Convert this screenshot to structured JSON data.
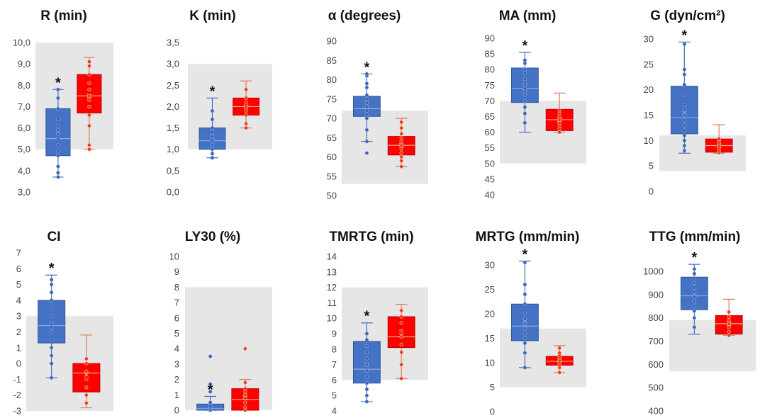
{
  "chart_data": [
    {
      "type": "box",
      "title": "R (min)",
      "ylim": [
        3,
        10
      ],
      "ticks": [
        "3,0",
        "4,0",
        "5,0",
        "6,0",
        "7,0",
        "8,0",
        "9,0",
        "10,0"
      ],
      "tick_values": [
        3,
        4,
        5,
        6,
        7,
        8,
        9,
        10
      ],
      "reference_range": [
        5,
        10
      ],
      "series": [
        {
          "color": "#4472C4",
          "min": 3.7,
          "q1": 4.7,
          "median": 5.5,
          "q3": 6.9,
          "max": 7.8,
          "mean": 5.8,
          "points": [
            3.7,
            3.9,
            4.2,
            4.7,
            4.9,
            5.2,
            5.5,
            5.7,
            5.9,
            6.1,
            6.4,
            6.9,
            7.4,
            7.8
          ],
          "significant": true,
          "marker": "*"
        },
        {
          "color": "#FF0000",
          "min": 5.0,
          "q1": 6.7,
          "median": 7.5,
          "q3": 8.5,
          "max": 9.3,
          "mean": 7.5,
          "points": [
            5.0,
            5.2,
            6.1,
            6.6,
            7.0,
            7.3,
            7.5,
            7.8,
            8.1,
            8.5,
            8.9,
            9.1
          ],
          "significant": false,
          "marker": ""
        }
      ]
    },
    {
      "type": "box",
      "title": "K (min)",
      "ylim": [
        0,
        3.5
      ],
      "ticks": [
        "0,0",
        "0,5",
        "1,0",
        "1,5",
        "2,0",
        "2,5",
        "3,0",
        "3,5"
      ],
      "tick_values": [
        0,
        0.5,
        1,
        1.5,
        2,
        2.5,
        3,
        3.5
      ],
      "reference_range": [
        1,
        3
      ],
      "series": [
        {
          "color": "#4472C4",
          "min": 0.8,
          "q1": 1.0,
          "median": 1.2,
          "q3": 1.5,
          "max": 2.2,
          "mean": 1.3,
          "points": [
            0.8,
            0.9,
            1.0,
            1.1,
            1.2,
            1.3,
            1.4,
            1.5,
            1.7,
            1.9
          ],
          "significant": true,
          "marker": "*"
        },
        {
          "color": "#FF0000",
          "min": 1.5,
          "q1": 1.8,
          "median": 2.0,
          "q3": 2.2,
          "max": 2.6,
          "mean": 2.0,
          "points": [
            1.5,
            1.6,
            1.8,
            1.9,
            2.0,
            2.1,
            2.2,
            2.4
          ],
          "significant": false,
          "marker": ""
        }
      ]
    },
    {
      "type": "box",
      "title": "α (degrees)",
      "ylim": [
        50,
        90
      ],
      "ticks": [
        "50",
        "55",
        "60",
        "65",
        "70",
        "75",
        "80",
        "85",
        "90"
      ],
      "tick_values": [
        50,
        55,
        60,
        65,
        70,
        75,
        80,
        85,
        90
      ],
      "reference_range": [
        53,
        72
      ],
      "series": [
        {
          "color": "#4472C4",
          "min": 64,
          "q1": 70.5,
          "median": 72.5,
          "q3": 75.7,
          "max": 81.5,
          "mean": 72.5,
          "points": [
            61,
            64,
            67,
            70,
            71,
            72,
            73,
            74,
            75,
            76,
            78,
            79,
            81,
            81.5
          ],
          "significant": true,
          "marker": "*"
        },
        {
          "color": "#FF0000",
          "min": 57.5,
          "q1": 60.5,
          "median": 63,
          "q3": 65.3,
          "max": 70,
          "mean": 63,
          "points": [
            57.5,
            59,
            60,
            61,
            62,
            63,
            64,
            65,
            66,
            67.5,
            69
          ],
          "significant": false,
          "marker": ""
        }
      ]
    },
    {
      "type": "box",
      "title": "MA (mm)",
      "ylim": [
        40,
        90
      ],
      "ticks": [
        "40",
        "45",
        "50",
        "55",
        "60",
        "65",
        "70",
        "75",
        "80",
        "85",
        "90"
      ],
      "tick_values": [
        40,
        45,
        50,
        55,
        60,
        65,
        70,
        75,
        80,
        85,
        90
      ],
      "reference_range": [
        50,
        70
      ],
      "series": [
        {
          "color": "#4472C4",
          "min": 60,
          "q1": 69.5,
          "median": 74,
          "q3": 80.5,
          "max": 85.5,
          "mean": 74.5,
          "points": [
            63,
            66,
            68,
            70,
            72,
            73,
            74,
            75,
            76,
            77,
            79,
            80,
            82,
            83
          ],
          "significant": true,
          "marker": "*"
        },
        {
          "color": "#FF0000",
          "min": 60,
          "q1": 60.5,
          "median": 64,
          "q3": 67.3,
          "max": 72.5,
          "mean": 64,
          "points": [
            60,
            61,
            62,
            63,
            64,
            65,
            66,
            67
          ],
          "significant": false,
          "marker": ""
        }
      ]
    },
    {
      "type": "box",
      "title": "G (dyn/cm²)",
      "ylim": [
        0,
        30
      ],
      "ticks": [
        "0",
        "5",
        "10",
        "15",
        "20",
        "25",
        "30"
      ],
      "tick_values": [
        0,
        5,
        10,
        15,
        20,
        25,
        30
      ],
      "reference_range": [
        4,
        11
      ],
      "series": [
        {
          "color": "#4472C4",
          "min": 7.5,
          "q1": 11.3,
          "median": 14.5,
          "q3": 20.7,
          "max": 29.4,
          "mean": 15.5,
          "points": [
            8,
            9,
            10,
            11,
            12,
            13,
            14,
            15,
            16,
            17,
            19,
            21,
            23,
            24,
            29
          ],
          "significant": true,
          "marker": "*"
        },
        {
          "color": "#FF0000",
          "min": 7.5,
          "q1": 7.7,
          "median": 9,
          "q3": 10.3,
          "max": 13.1,
          "mean": 9,
          "points": [
            7.6,
            8,
            8.5,
            9,
            9.5,
            10,
            10.3
          ],
          "significant": false,
          "marker": ""
        }
      ]
    },
    {
      "type": "box",
      "title": "CI",
      "ylim": [
        -3,
        7
      ],
      "ticks": [
        "-3",
        "-2",
        "-1",
        "0",
        "1",
        "2",
        "3",
        "4",
        "5",
        "6",
        "7"
      ],
      "tick_values": [
        -3,
        -2,
        -1,
        0,
        1,
        2,
        3,
        4,
        5,
        6,
        7
      ],
      "reference_range": [
        -3,
        3
      ],
      "series": [
        {
          "color": "#4472C4",
          "min": -0.9,
          "q1": 1.3,
          "median": 2.4,
          "q3": 4.0,
          "max": 5.6,
          "mean": 2.5,
          "points": [
            -0.9,
            0,
            0.5,
            1,
            1.5,
            2,
            2.3,
            2.5,
            3,
            3.5,
            4,
            4.5,
            5,
            5.3
          ],
          "significant": true,
          "marker": "*"
        },
        {
          "color": "#FF0000",
          "min": -2.8,
          "q1": -1.8,
          "median": -0.6,
          "q3": 0,
          "max": 1.8,
          "mean": -0.7,
          "points": [
            -2.5,
            -2,
            -1.5,
            -1,
            -0.5,
            0,
            0.3
          ],
          "significant": false,
          "marker": ""
        }
      ]
    },
    {
      "type": "box",
      "title": "LY30 (%)",
      "ylim": [
        0,
        10
      ],
      "ticks": [
        "0",
        "1",
        "2",
        "3",
        "4",
        "5",
        "6",
        "7",
        "8",
        "9",
        "10"
      ],
      "tick_values": [
        0,
        1,
        2,
        3,
        4,
        5,
        6,
        7,
        8,
        9,
        10
      ],
      "reference_range": [
        0,
        8
      ],
      "series": [
        {
          "color": "#4472C4",
          "min": 0,
          "q1": 0,
          "median": 0.1,
          "q3": 0.4,
          "max": 0.9,
          "mean": 0.3,
          "points": [
            0,
            0,
            0.1,
            0.2,
            0.3,
            0.5,
            1.2,
            1.7,
            3.5
          ],
          "significant": true,
          "marker": "*"
        },
        {
          "color": "#FF0000",
          "min": 0,
          "q1": 0,
          "median": 0.7,
          "q3": 1.4,
          "max": 2.0,
          "mean": 0.8,
          "points": [
            0,
            0.2,
            0.5,
            0.8,
            1,
            1.2,
            1.4,
            1.8,
            4.0
          ],
          "significant": false,
          "marker": ""
        }
      ]
    },
    {
      "type": "box",
      "title": "TMRTG (min)",
      "ylim": [
        4,
        14
      ],
      "ticks": [
        "4",
        "5",
        "6",
        "7",
        "8",
        "9",
        "10",
        "11",
        "12",
        "13",
        "14"
      ],
      "tick_values": [
        4,
        5,
        6,
        7,
        8,
        9,
        10,
        11,
        12,
        13,
        14
      ],
      "reference_range": [
        6,
        12
      ],
      "series": [
        {
          "color": "#4472C4",
          "min": 4.6,
          "q1": 5.8,
          "median": 6.7,
          "q3": 8.5,
          "max": 9.7,
          "mean": 7.0,
          "points": [
            4.6,
            5,
            5.4,
            5.8,
            6.2,
            6.6,
            7,
            7.4,
            7.8,
            8.2,
            8.6,
            9
          ],
          "significant": true,
          "marker": "*"
        },
        {
          "color": "#FF0000",
          "min": 6.1,
          "q1": 8.1,
          "median": 8.8,
          "q3": 10.1,
          "max": 10.9,
          "mean": 8.9,
          "points": [
            6.1,
            7,
            7.8,
            8.3,
            8.8,
            9.2,
            9.7,
            10.1,
            10.5
          ],
          "significant": false,
          "marker": ""
        }
      ]
    },
    {
      "type": "box",
      "title": "MRTG (mm/min)",
      "ylim": [
        0,
        30
      ],
      "ticks": [
        "0",
        "5",
        "10",
        "15",
        "20",
        "25",
        "30"
      ],
      "tick_values": [
        0,
        5,
        10,
        15,
        20,
        25,
        30
      ],
      "reference_range": [
        5,
        17
      ],
      "series": [
        {
          "color": "#4472C4",
          "min": 9,
          "q1": 14.5,
          "median": 17.5,
          "q3": 22,
          "max": 30.8,
          "mean": 18.5,
          "points": [
            9,
            12,
            14,
            15,
            16,
            17,
            18,
            19,
            20,
            22,
            24,
            26,
            30.5
          ],
          "significant": true,
          "marker": "*"
        },
        {
          "color": "#FF0000",
          "min": 8,
          "q1": 9.5,
          "median": 10.3,
          "q3": 11.3,
          "max": 13.5,
          "mean": 10.5,
          "points": [
            8,
            9,
            9.5,
            10,
            10.5,
            11,
            11.5,
            12,
            13
          ],
          "significant": false,
          "marker": ""
        }
      ]
    },
    {
      "type": "box",
      "title": "TTG (mm/min)",
      "ylim": [
        400,
        1000
      ],
      "ticks": [
        "400",
        "500",
        "600",
        "700",
        "800",
        "900",
        "1000"
      ],
      "tick_values": [
        400,
        500,
        600,
        700,
        800,
        900,
        1000
      ],
      "reference_range": [
        570,
        790
      ],
      "series": [
        {
          "color": "#4472C4",
          "min": 730,
          "q1": 835,
          "median": 895,
          "q3": 975,
          "max": 1030,
          "mean": 900,
          "points": [
            760,
            800,
            830,
            850,
            870,
            890,
            910,
            930,
            950,
            970,
            990,
            1010
          ],
          "significant": true,
          "marker": "*"
        },
        {
          "color": "#FF0000",
          "min": 725,
          "q1": 730,
          "median": 775,
          "q3": 810,
          "max": 880,
          "mean": 775,
          "points": [
            725,
            740,
            760,
            775,
            790,
            805,
            825
          ],
          "significant": false,
          "marker": ""
        }
      ]
    }
  ]
}
